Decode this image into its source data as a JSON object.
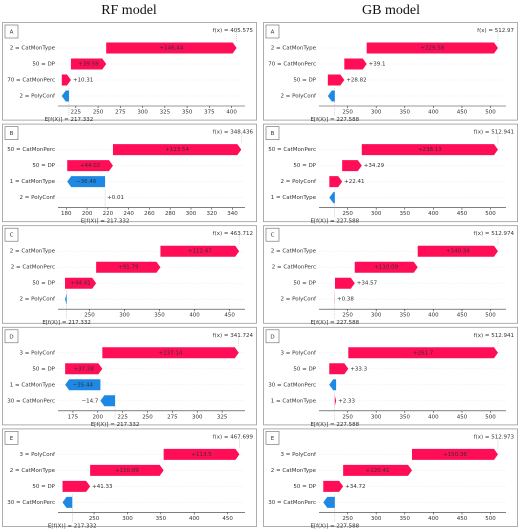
{
  "column_titles": [
    "RF model",
    "GB model"
  ],
  "chart_data": [
    {
      "type": "waterfall",
      "panel": "A",
      "fx_label": "f(x) =",
      "fx": 405.575,
      "base_label": "E[f(X)] =",
      "base": 217.332,
      "features": [
        "2 = CatMonType",
        "50 = DP",
        "70 = CatMonPerc",
        "2 = PolyConf"
      ],
      "values": [
        146.44,
        39.59,
        10.31,
        -8.1
      ],
      "value_labels": [
        "+146.44",
        "+39.59",
        "+10.31",
        null
      ],
      "xlim": [
        205,
        415
      ],
      "xticks": [
        225,
        250,
        275,
        300,
        325,
        350,
        375,
        400
      ],
      "colors": {
        "positive": "#ff0d57",
        "negative": "#1e88e5"
      }
    },
    {
      "type": "waterfall",
      "panel": "B",
      "fx_label": "f(x) =",
      "fx": 348.436,
      "base_label": "E[f(X)] =",
      "base": 217.332,
      "features": [
        "50 = CatMonPerc",
        "50 = DP",
        "1 = CatMonType",
        "2 = PolyConf"
      ],
      "values": [
        123.54,
        44.02,
        -36.46,
        0.01
      ],
      "value_labels": [
        "+123.54",
        "+44.02",
        "−36.46",
        "+0.01"
      ],
      "xlim": [
        172,
        352
      ],
      "xticks": [
        180,
        200,
        220,
        240,
        260,
        280,
        300,
        320,
        340
      ],
      "colors": {
        "positive": "#ff0d57",
        "negative": "#1e88e5"
      }
    },
    {
      "type": "waterfall",
      "panel": "C",
      "fx_label": "f(x) =",
      "fx": 463.712,
      "base_label": "E[f(X)] =",
      "base": 217.332,
      "features": [
        "2 = CatMonType",
        "2 = CatMonPerc",
        "50 = DP",
        "2 = PolyConf"
      ],
      "values": [
        112.47,
        91.79,
        44.41,
        -2.29
      ],
      "value_labels": [
        "+112.47",
        "+91.79",
        "+44.41",
        null
      ],
      "xlim": [
        205,
        472
      ],
      "xticks": [
        250,
        300,
        350,
        400,
        450
      ],
      "colors": {
        "positive": "#ff0d57",
        "negative": "#1e88e5"
      }
    },
    {
      "type": "waterfall",
      "panel": "D",
      "fx_label": "f(x) =",
      "fx": 341.724,
      "base_label": "E[f(X)] =",
      "base": 217.332,
      "features": [
        "3 = PolyConf",
        "50 = DP",
        "1 = CatMonType",
        "30 = CatMonPerc"
      ],
      "values": [
        137.14,
        37.38,
        -35.44,
        -14.7
      ],
      "value_labels": [
        "+137.14",
        "+37.38",
        "−35.44",
        "−14.7"
      ],
      "xlim": [
        160,
        348
      ],
      "xticks": [
        175,
        200,
        225,
        250,
        275,
        300,
        325
      ],
      "colors": {
        "positive": "#ff0d57",
        "negative": "#1e88e5"
      }
    },
    {
      "type": "waterfall",
      "panel": "E",
      "fx_label": "f(x) =",
      "fx": 467.699,
      "base_label": "E[f(X)] =",
      "base": 217.332,
      "features": [
        "3 = PolyConf",
        "2 = CatMonType",
        "50 = DP",
        "30 = CatMonPerc"
      ],
      "values": [
        113.5,
        110.09,
        41.33,
        -14.55
      ],
      "value_labels": [
        "+113.5",
        "+110.09",
        "+41.33",
        null
      ],
      "xlim": [
        196,
        476
      ],
      "xticks": [
        250,
        300,
        350,
        400,
        450
      ],
      "colors": {
        "positive": "#ff0d57",
        "negative": "#1e88e5"
      }
    },
    {
      "type": "waterfall",
      "panel": "A",
      "fx_label": "f(x) =",
      "fx": 512.97,
      "base_label": "E[f(X)] =",
      "base": 227.588,
      "features": [
        "2 = CatMonType",
        "70 = CatMonPerc",
        "50 = DP",
        "2 = PolyConf"
      ],
      "values": [
        229.58,
        39.1,
        28.82,
        -12.12
      ],
      "value_labels": [
        "+229.58",
        "+39.1",
        "+28.82",
        null
      ],
      "xlim": [
        200,
        527
      ],
      "xticks": [
        250,
        300,
        350,
        400,
        450,
        500
      ],
      "colors": {
        "positive": "#ff0d57",
        "negative": "#1e88e5"
      }
    },
    {
      "type": "waterfall",
      "panel": "B",
      "fx_label": "f(x) =",
      "fx": 512.941,
      "base_label": "E[f(X)] =",
      "base": 227.588,
      "features": [
        "50 = CatMonPerc",
        "50 = DP",
        "2 = PolyConf",
        "1 = CatMonType"
      ],
      "values": [
        238.13,
        34.29,
        22.41,
        -9.48
      ],
      "value_labels": [
        "+238.13",
        "+34.29",
        "+22.41",
        null
      ],
      "xlim": [
        200,
        527
      ],
      "xticks": [
        250,
        300,
        350,
        400,
        450,
        500
      ],
      "colors": {
        "positive": "#ff0d57",
        "negative": "#1e88e5"
      }
    },
    {
      "type": "waterfall",
      "panel": "C",
      "fx_label": "f(x) =",
      "fx": 512.974,
      "base_label": "E[f(X)] =",
      "base": 227.588,
      "features": [
        "2 = CatMonType",
        "2 = CatMonPerc",
        "50 = DP",
        "2 = PolyConf"
      ],
      "values": [
        140.34,
        110.09,
        34.57,
        0.38
      ],
      "value_labels": [
        "+140.34",
        "+110.09",
        "+34.57",
        "+0.38"
      ],
      "xlim": [
        200,
        527
      ],
      "xticks": [
        250,
        300,
        350,
        400,
        450,
        500
      ],
      "colors": {
        "positive": "#ff0d57",
        "negative": "#1e88e5"
      }
    },
    {
      "type": "waterfall",
      "panel": "D",
      "fx_label": "f(x) =",
      "fx": 512.941,
      "base_label": "E[f(X)] =",
      "base": 227.588,
      "features": [
        "3 = PolyConf",
        "50 = DP",
        "30 = CatMonPerc",
        "1 = CatMonType"
      ],
      "values": [
        261.7,
        33.3,
        -11.98,
        2.33
      ],
      "value_labels": [
        "+261.7",
        "+33.3",
        null,
        "+2.33"
      ],
      "xlim": [
        200,
        527
      ],
      "xticks": [
        250,
        300,
        350,
        400,
        450,
        500
      ],
      "colors": {
        "positive": "#ff0d57",
        "negative": "#1e88e5"
      }
    },
    {
      "type": "waterfall",
      "panel": "E",
      "fx_label": "f(x) =",
      "fx": 512.973,
      "base_label": "E[f(X)] =",
      "base": 227.588,
      "features": [
        "3 = PolyConf",
        "2 = CatMonType",
        "50 = DP",
        "30 = CatMonPerc"
      ],
      "values": [
        150.36,
        120.41,
        34.72,
        -20.1
      ],
      "value_labels": [
        "+150.36",
        "+120.41",
        "+34.72",
        null
      ],
      "xlim": [
        200,
        527
      ],
      "xticks": [
        250,
        300,
        350,
        400,
        450,
        500
      ],
      "colors": {
        "positive": "#ff0d57",
        "negative": "#1e88e5"
      }
    }
  ]
}
